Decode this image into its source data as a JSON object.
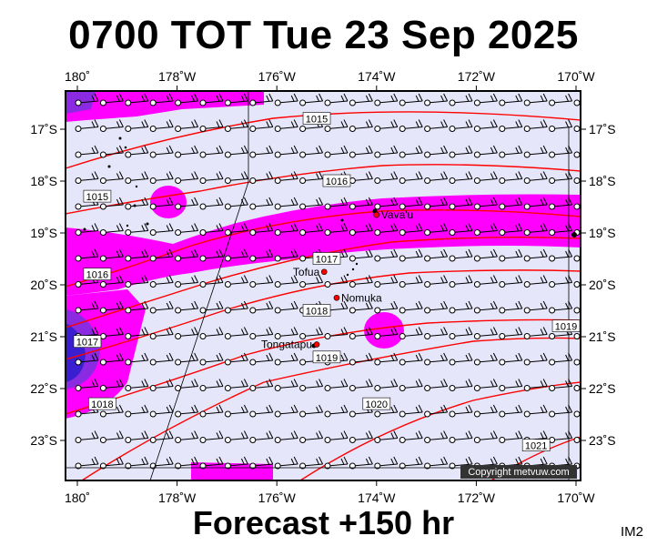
{
  "header": {
    "title": "0700 TOT Tue 23 Sep 2025"
  },
  "footer": {
    "forecast": "Forecast +150 hr",
    "code": "IM2",
    "copyright": "Copyright metvuw.com"
  },
  "map": {
    "lon_ticks": [
      "180˚",
      "178˚W",
      "176˚W",
      "174˚W",
      "172˚W",
      "170˚W"
    ],
    "lat_ticks": [
      "17˚S",
      "18˚S",
      "19˚S",
      "20˚S",
      "21˚S",
      "22˚S",
      "23˚S"
    ],
    "isobars": [
      {
        "label": "1015",
        "lon": -175.2,
        "lat": -16.8
      },
      {
        "label": "1015",
        "lon": -179.6,
        "lat": -18.3
      },
      {
        "label": "1016",
        "lon": -174.8,
        "lat": -18.0
      },
      {
        "label": "1016",
        "lon": -179.6,
        "lat": -19.8
      },
      {
        "label": "1017",
        "lon": -175.0,
        "lat": -19.5
      },
      {
        "label": "1017",
        "lon": -179.8,
        "lat": -21.1
      },
      {
        "label": "1018",
        "lon": -175.2,
        "lat": -20.5
      },
      {
        "label": "1018",
        "lon": -179.5,
        "lat": -22.3
      },
      {
        "label": "1019",
        "lon": -175.0,
        "lat": -21.4
      },
      {
        "label": "1019",
        "lon": -170.2,
        "lat": -20.8
      },
      {
        "label": "1020",
        "lon": -174.0,
        "lat": -22.3
      },
      {
        "label": "1021",
        "lon": -170.8,
        "lat": -23.1
      }
    ],
    "places": [
      {
        "name": "Vava'u",
        "lon": -174.0,
        "lat": -18.65
      },
      {
        "name": "Tofua",
        "lon": -175.05,
        "lat": -19.75
      },
      {
        "name": "Nomuka",
        "lon": -174.8,
        "lat": -20.25
      },
      {
        "name": "Tongatapu",
        "lon": -175.2,
        "lat": -21.15
      }
    ]
  }
}
